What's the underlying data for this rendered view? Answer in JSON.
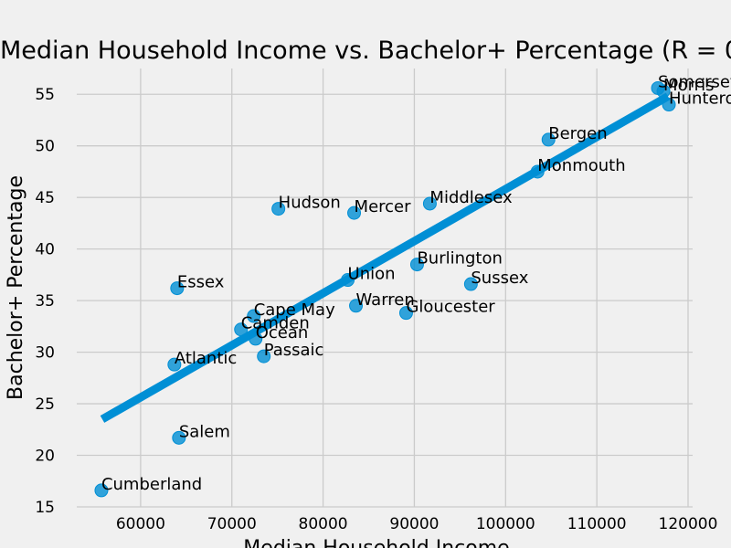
{
  "chart_data": {
    "type": "scatter",
    "title": "Median Household Income vs. Bachelor+ Percentage (R = 0",
    "xlabel": "Median Household Income",
    "ylabel": "Bachelor+ Percentage",
    "xlim": [
      53000,
      120500
    ],
    "ylim": [
      15,
      57.5
    ],
    "xticks": [
      60000,
      70000,
      80000,
      90000,
      100000,
      110000,
      120000
    ],
    "xtick_labels": [
      "60000",
      "70000",
      "80000",
      "90000",
      "100000",
      "110000",
      "120000"
    ],
    "yticks": [
      15,
      20,
      25,
      30,
      35,
      40,
      45,
      50,
      55
    ],
    "ytick_labels": [
      "15",
      "20",
      "25",
      "30",
      "35",
      "40",
      "45",
      "50",
      "55"
    ],
    "grid": true,
    "point_color": "#008fd5",
    "line_color": "#008fd5",
    "background": "#f0f0f0",
    "trendline": {
      "x": [
        55800,
        117800
      ],
      "y": [
        23.5,
        54.8
      ]
    },
    "points": [
      {
        "label": "Somerset",
        "x": 116700,
        "y": 55.6
      },
      {
        "label": "Morris",
        "x": 117300,
        "y": 55.3
      },
      {
        "label": "Hunterdon",
        "x": 117900,
        "y": 54.0
      },
      {
        "label": "Bergen",
        "x": 104700,
        "y": 50.6
      },
      {
        "label": "Monmouth",
        "x": 103500,
        "y": 47.5
      },
      {
        "label": "Hudson",
        "x": 75100,
        "y": 43.9
      },
      {
        "label": "Mercer",
        "x": 83400,
        "y": 43.5
      },
      {
        "label": "Middlesex",
        "x": 91700,
        "y": 44.4
      },
      {
        "label": "Burlington",
        "x": 90300,
        "y": 38.5
      },
      {
        "label": "Sussex",
        "x": 96200,
        "y": 36.6
      },
      {
        "label": "Union",
        "x": 82700,
        "y": 37.0
      },
      {
        "label": "Essex",
        "x": 64000,
        "y": 36.2
      },
      {
        "label": "Warren",
        "x": 83600,
        "y": 34.5
      },
      {
        "label": "Gloucester",
        "x": 89100,
        "y": 33.8
      },
      {
        "label": "Cape May",
        "x": 72400,
        "y": 33.5
      },
      {
        "label": "Camden",
        "x": 71000,
        "y": 32.2
      },
      {
        "label": "Ocean",
        "x": 72600,
        "y": 31.3
      },
      {
        "label": "Passaic",
        "x": 73500,
        "y": 29.6
      },
      {
        "label": "Atlantic",
        "x": 63700,
        "y": 28.8
      },
      {
        "label": "Salem",
        "x": 64200,
        "y": 21.7
      },
      {
        "label": "Cumberland",
        "x": 55700,
        "y": 16.6
      }
    ]
  }
}
